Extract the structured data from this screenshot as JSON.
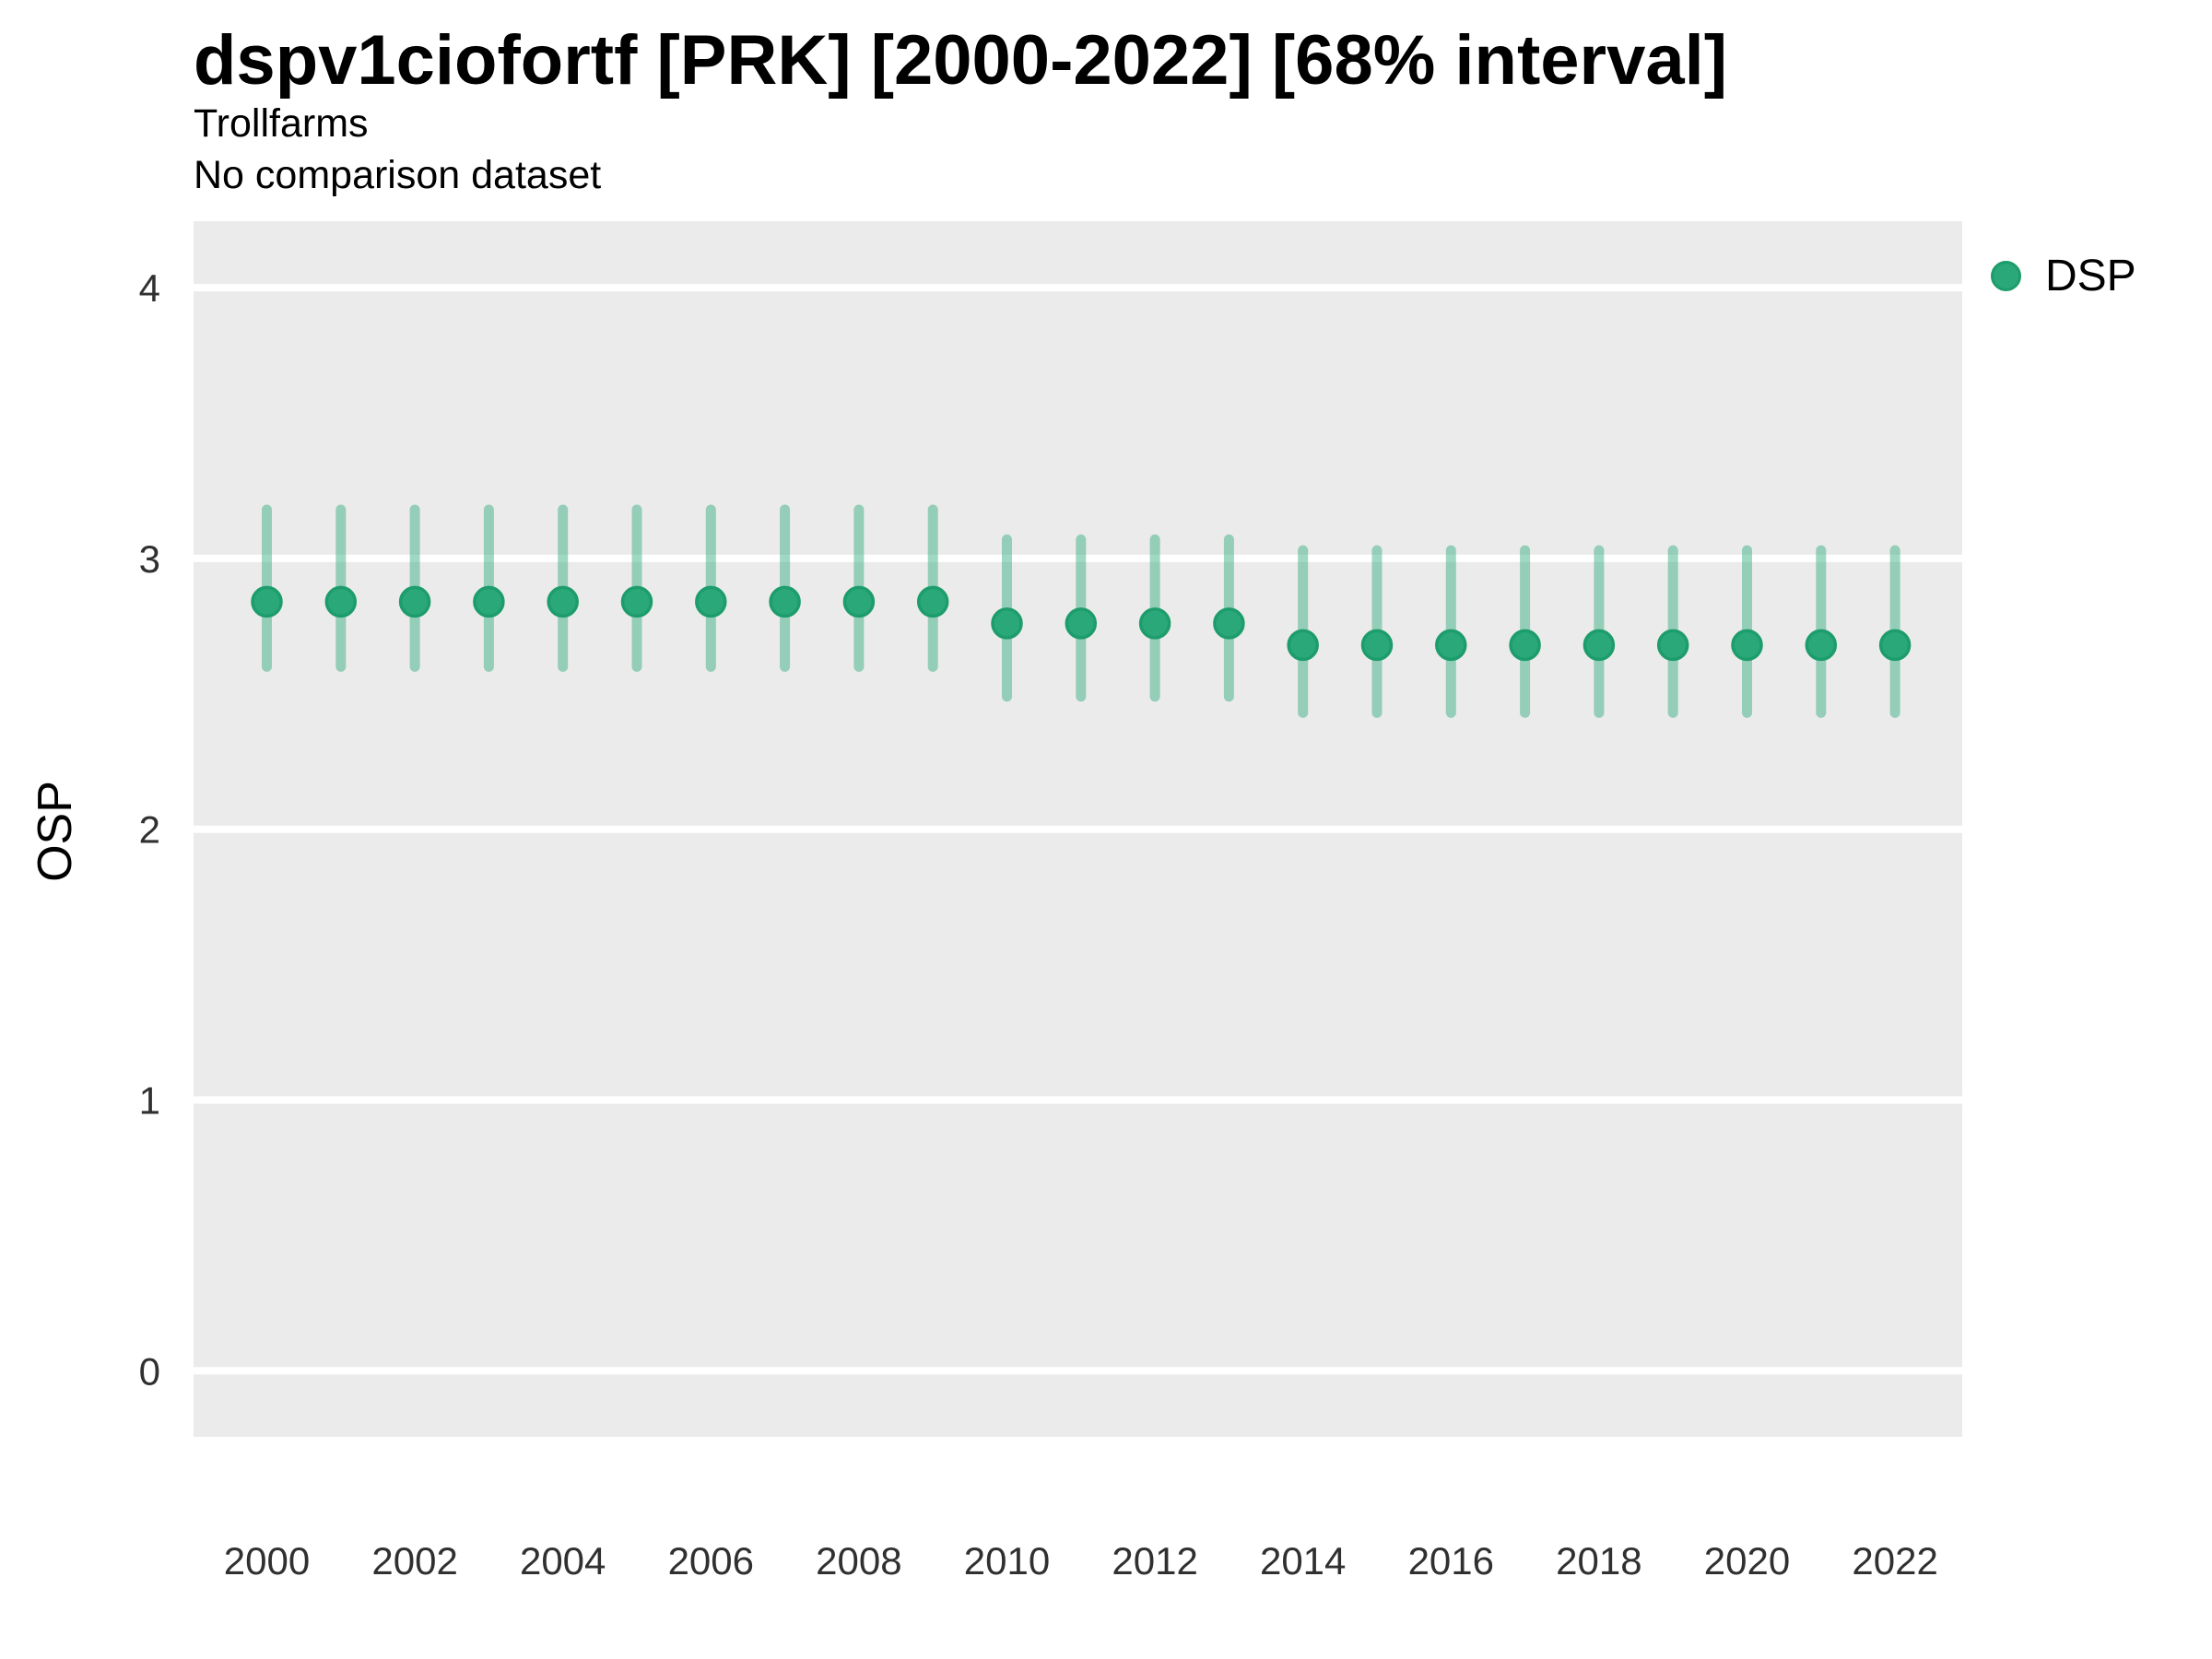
{
  "chart_data": {
    "type": "pointrange",
    "title": "dspv1ciofortf [PRK] [2000-2022] [68% interval]",
    "subtitle": "Trollfarms",
    "subtitle2": "No comparison dataset",
    "ylabel": "OSP",
    "xlabel": "",
    "ylim": [
      0,
      4
    ],
    "yticks": [
      0,
      1,
      2,
      3,
      4
    ],
    "xticks": [
      2000,
      2002,
      2004,
      2006,
      2008,
      2010,
      2012,
      2014,
      2016,
      2018,
      2020,
      2022
    ],
    "grid": "major-horizontal-only",
    "legend_position": "right",
    "panel_bg": "#ebebeb",
    "grid_color": "#ffffff",
    "tick_color": "#303030",
    "legend": [
      {
        "label": "DSP",
        "color": "#2aa87a",
        "border": "#1d9c6c"
      }
    ],
    "series": [
      {
        "name": "DSP",
        "point_color": "#2aa87a",
        "point_border": "#1d9c6c",
        "interval_color": "rgba(42,168,122,0.45)",
        "points": [
          {
            "year": 2000,
            "v": 2.84,
            "lo": 2.6,
            "hi": 3.18
          },
          {
            "year": 2001,
            "v": 2.84,
            "lo": 2.6,
            "hi": 3.18
          },
          {
            "year": 2002,
            "v": 2.84,
            "lo": 2.6,
            "hi": 3.18
          },
          {
            "year": 2003,
            "v": 2.84,
            "lo": 2.6,
            "hi": 3.18
          },
          {
            "year": 2004,
            "v": 2.84,
            "lo": 2.6,
            "hi": 3.18
          },
          {
            "year": 2005,
            "v": 2.84,
            "lo": 2.6,
            "hi": 3.18
          },
          {
            "year": 2006,
            "v": 2.84,
            "lo": 2.6,
            "hi": 3.18
          },
          {
            "year": 2007,
            "v": 2.84,
            "lo": 2.6,
            "hi": 3.18
          },
          {
            "year": 2008,
            "v": 2.84,
            "lo": 2.6,
            "hi": 3.18
          },
          {
            "year": 2009,
            "v": 2.84,
            "lo": 2.6,
            "hi": 3.18
          },
          {
            "year": 2010,
            "v": 2.76,
            "lo": 2.49,
            "hi": 3.07
          },
          {
            "year": 2011,
            "v": 2.76,
            "lo": 2.49,
            "hi": 3.07
          },
          {
            "year": 2012,
            "v": 2.76,
            "lo": 2.49,
            "hi": 3.07
          },
          {
            "year": 2013,
            "v": 2.76,
            "lo": 2.49,
            "hi": 3.07
          },
          {
            "year": 2014,
            "v": 2.68,
            "lo": 2.43,
            "hi": 3.03
          },
          {
            "year": 2015,
            "v": 2.68,
            "lo": 2.43,
            "hi": 3.03
          },
          {
            "year": 2016,
            "v": 2.68,
            "lo": 2.43,
            "hi": 3.03
          },
          {
            "year": 2017,
            "v": 2.68,
            "lo": 2.43,
            "hi": 3.03
          },
          {
            "year": 2018,
            "v": 2.68,
            "lo": 2.43,
            "hi": 3.03
          },
          {
            "year": 2019,
            "v": 2.68,
            "lo": 2.43,
            "hi": 3.03
          },
          {
            "year": 2020,
            "v": 2.68,
            "lo": 2.43,
            "hi": 3.03
          },
          {
            "year": 2021,
            "v": 2.68,
            "lo": 2.43,
            "hi": 3.03
          },
          {
            "year": 2022,
            "v": 2.68,
            "lo": 2.43,
            "hi": 3.03
          }
        ]
      }
    ]
  }
}
